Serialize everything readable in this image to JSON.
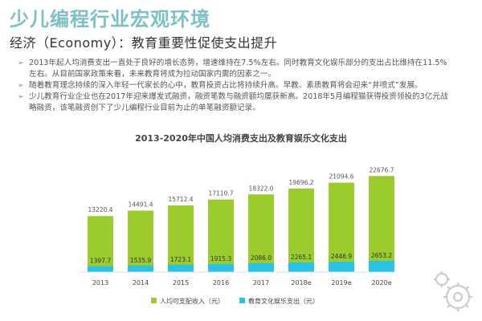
{
  "header": {
    "title": "少儿编程行业宏观环境",
    "subtitle": "经济（Economy）：教育重要性促使支出提升"
  },
  "bullets": [
    "2013年起人均消费支出一直处于良好的增长态势，增速维持在7.5%左右。同时教育文化娱乐部分的支出占比维持在11.5%左右。从目前国家政策来看，未来教育将成为拉动国家内需的因素之一。",
    "随着教育理念持续的深入年轻一代家长的心中，教育投资占比将持续升高。早教、素质教育将会迎来“井喷式”发展。",
    "少儿教育行业企业也在2017年迎来爆发式融资，融资笔数与融资额均屡获新高。2018年5月编程猫获得投资领投的3亿元战略融资，该笔融资创下了少儿编程行业目前为止的单笔融资额记录。"
  ],
  "colors": {
    "title": "#7cc0c4",
    "income": "#9ccb2e",
    "education": "#29c3e8"
  },
  "chart_data": {
    "type": "bar",
    "title": "2013-2020年中国人均消费支出及教育娱乐文化支出",
    "categories": [
      "2013",
      "2014",
      "2015",
      "2016",
      "2017",
      "2018e",
      "2019e",
      "2020e"
    ],
    "series": [
      {
        "name": "人均可支配收入（元）",
        "values": [
          13220.4,
          14491.4,
          15712.4,
          17110.7,
          18322.0,
          19696.2,
          21094.6,
          22676.7
        ]
      },
      {
        "name": "教育文化娱乐支出（元）",
        "values": [
          1397.7,
          1535.9,
          1723.1,
          1915.3,
          2086.0,
          2265.1,
          2446.9,
          2653.2
        ]
      }
    ],
    "value_labels_income": [
      "13220.4",
      "14491.4",
      "15712.4",
      "17110.7",
      "18322.0",
      "19696.2",
      "21094.6",
      "22676.7"
    ],
    "value_labels_education": [
      "1397.7",
      "1535.9",
      "1723.1",
      "1915.3",
      "2086.0",
      "2265.1",
      "2446.9",
      "2653.2"
    ],
    "stacked": false,
    "overlay": true,
    "legend": "bottom-center",
    "grid": false,
    "ylim": [
      0,
      25000
    ]
  }
}
